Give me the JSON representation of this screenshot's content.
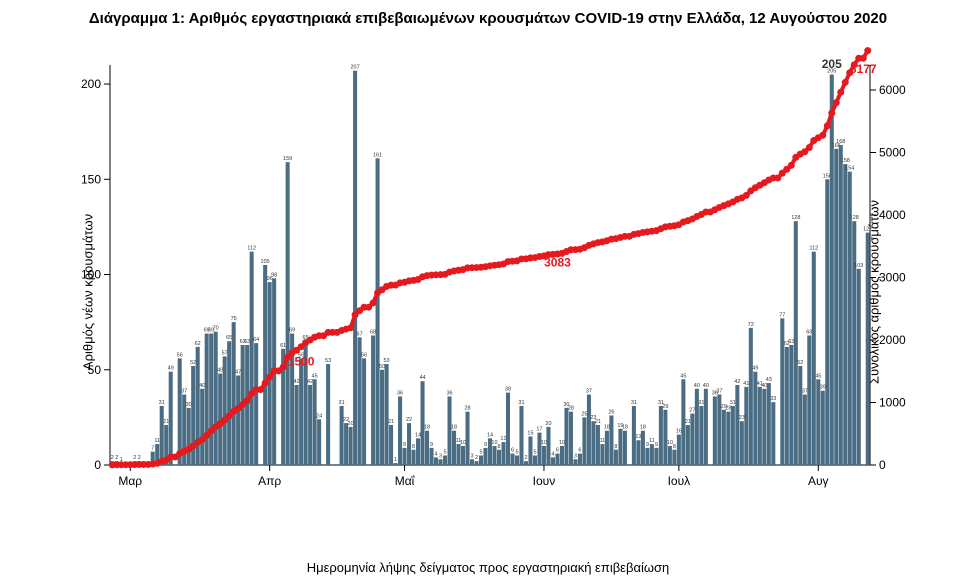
{
  "chart": {
    "type": "bar+line",
    "title": "Διάγραμμα 1: Αριθμός εργαστηριακά επιβεβαιωμένων κρουσμάτων COVID-19 στην Ελλάδα, 12 Αυγούστου 2020",
    "title_fontsize": 15,
    "x_axis_label": "Ημερομηνία λήψης δείγματος προς εργαστηριακή επιβεβαίωση",
    "y_axis_left_label": "Αριθμός νέων κρουσμάτων",
    "y_axis_right_label": "Συνολικός αριθμός κρουσμάτων",
    "background_color": "#ffffff",
    "bar_color": "#4a6d84",
    "line_color": "#e6191e",
    "marker_color": "#e6191e",
    "marker_radius": 3.5,
    "line_width": 4,
    "axis_color": "#000000",
    "y_left": {
      "min": 0,
      "max": 210,
      "ticks": [
        0,
        50,
        100,
        150,
        200
      ]
    },
    "y_right": {
      "min": 0,
      "max": 6400,
      "ticks": [
        0,
        1000,
        2000,
        3000,
        4000,
        5000,
        6000
      ]
    },
    "x_ticks": [
      {
        "index": 4,
        "label": "Μαρ"
      },
      {
        "index": 35,
        "label": "Απρ"
      },
      {
        "index": 65,
        "label": "Μαΐ"
      },
      {
        "index": 96,
        "label": "Ιουν"
      },
      {
        "index": 126,
        "label": "Ιουλ"
      },
      {
        "index": 157,
        "label": "Αυγ"
      }
    ],
    "bars": [
      2,
      2,
      1,
      0,
      0,
      2,
      2,
      0,
      0,
      7,
      11,
      31,
      21,
      49,
      0,
      56,
      37,
      30,
      52,
      62,
      40,
      69,
      69,
      70,
      48,
      57,
      65,
      75,
      47,
      63,
      63,
      112,
      64,
      0,
      105,
      96,
      98,
      0,
      61,
      159,
      69,
      42,
      56,
      65,
      42,
      45,
      24,
      0,
      53,
      0,
      0,
      31,
      22,
      20,
      207,
      67,
      56,
      0,
      68,
      161,
      50,
      53,
      21,
      1,
      36,
      9,
      22,
      8,
      14,
      44,
      18,
      9,
      4,
      3,
      5,
      36,
      18,
      11,
      10,
      28,
      3,
      2,
      5,
      9,
      14,
      10,
      8,
      12,
      38,
      6,
      5,
      31,
      2,
      15,
      5,
      17,
      10,
      20,
      4,
      6,
      10,
      30,
      28,
      3,
      6,
      25,
      37,
      23,
      21,
      11,
      18,
      26,
      8,
      19,
      18,
      0,
      31,
      13,
      18,
      9,
      11,
      9,
      31,
      29,
      10,
      8,
      16,
      45,
      21,
      27,
      40,
      31,
      40,
      0,
      36,
      37,
      29,
      28,
      31,
      42,
      23,
      41,
      72,
      49,
      41,
      40,
      43,
      33,
      0,
      77,
      62,
      63,
      128,
      52,
      37,
      68,
      112,
      45,
      39,
      150,
      205,
      166,
      168,
      158,
      154,
      128,
      103,
      0,
      122
    ],
    "key_labels": [
      {
        "index": 42,
        "value": 1500,
        "text": "1500",
        "color": "#e6191e"
      },
      {
        "index": 99,
        "value": 3083,
        "text": "3083",
        "color": "#e6191e"
      },
      {
        "index": 167,
        "value": 6177,
        "text": "6177",
        "color": "#e6191e"
      },
      {
        "index": 160,
        "value": 6260,
        "text": "205",
        "color": "#333333"
      }
    ]
  }
}
